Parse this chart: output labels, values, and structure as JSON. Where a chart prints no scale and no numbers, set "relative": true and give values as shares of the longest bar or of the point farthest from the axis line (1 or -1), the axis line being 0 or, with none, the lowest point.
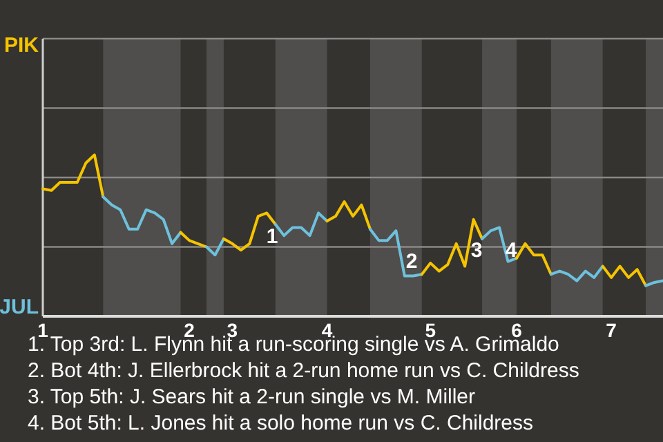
{
  "chart_data": {
    "type": "line",
    "relative": true,
    "categories": [
      "1",
      null,
      null,
      null,
      null,
      null,
      null,
      null,
      null,
      null,
      null,
      null,
      null,
      null,
      null,
      null,
      null,
      "2",
      null,
      null,
      null,
      null,
      "3",
      null,
      null,
      null,
      null,
      null,
      null,
      null,
      null,
      null,
      null,
      "4",
      null,
      null,
      null,
      null,
      null,
      null,
      null,
      null,
      null,
      null,
      null,
      "5",
      null,
      null,
      null,
      null,
      null,
      null,
      null,
      null,
      null,
      "6",
      null,
      null,
      null,
      null,
      null,
      null,
      null,
      null,
      null,
      null,
      "7",
      null,
      null,
      null,
      null,
      null,
      null
    ],
    "ref_lines": [
      {
        "axis": "y",
        "value": 0.43,
        "color": "#8a8986"
      },
      {
        "axis": "y",
        "value": 0.86,
        "color": "#8a8986"
      },
      {
        "axis": "y",
        "value": 1.29,
        "color": "#8a8986"
      }
    ],
    "marker": "none",
    "line_style": "solid",
    "series": [
      {
        "name": "PIK",
        "color": "#f5c400",
        "values": [
          0.79,
          0.78,
          0.83,
          0.83,
          0.83,
          0.95,
          1,
          0.74,
          null,
          null,
          null,
          null,
          null,
          null,
          null,
          null,
          null,
          null,
          null,
          null,
          null,
          null,
          null,
          null,
          null,
          null,
          null,
          null,
          null,
          null,
          null,
          null,
          null,
          null,
          null,
          null,
          null,
          null,
          null,
          null,
          null,
          null,
          null,
          null,
          null,
          null,
          null,
          null,
          null,
          null,
          null,
          null,
          null,
          null,
          null,
          null,
          null,
          null,
          null,
          null,
          null,
          null,
          null,
          null,
          null,
          null,
          null,
          null,
          null,
          null,
          null,
          null,
          null
        ]
      },
      {
        "name": "JUL",
        "color": "#6ec1dd",
        "values": [
          null,
          null,
          null,
          null,
          null,
          null,
          null,
          0.74,
          0.69,
          0.66,
          0.54,
          0.54,
          0.66,
          0.64,
          0.6,
          0.45,
          0.52,
          null,
          null,
          null,
          null,
          null,
          null,
          null,
          null,
          null,
          null,
          null,
          null,
          null,
          null,
          null,
          null,
          null,
          null,
          null,
          null,
          null,
          null,
          null,
          null,
          null,
          null,
          null,
          null,
          null,
          null,
          null,
          null,
          null,
          null,
          null,
          null,
          null,
          null,
          null,
          null,
          null,
          null,
          null,
          null,
          null,
          null,
          null,
          null,
          null,
          null,
          null,
          null,
          null,
          null,
          null,
          null
        ]
      },
      {
        "color": "#f5c400",
        "values": [
          null,
          null,
          null,
          null,
          null,
          null,
          null,
          null,
          null,
          null,
          null,
          null,
          null,
          null,
          null,
          null,
          0.52,
          0.47,
          0.45,
          0.43,
          null,
          null,
          null,
          null,
          null,
          null,
          null,
          null,
          null,
          null,
          null,
          null,
          null,
          null,
          null,
          null,
          null,
          null,
          null,
          null,
          null,
          null,
          null,
          null,
          null,
          null,
          null,
          null,
          null,
          null,
          null,
          null,
          null,
          null,
          null,
          null,
          null,
          null,
          null,
          null,
          null,
          null,
          null,
          null,
          null,
          null,
          null,
          null,
          null,
          null,
          null,
          null,
          null
        ]
      },
      {
        "color": "#6ec1dd",
        "values": [
          null,
          null,
          null,
          null,
          null,
          null,
          null,
          null,
          null,
          null,
          null,
          null,
          null,
          null,
          null,
          null,
          null,
          null,
          null,
          0.43,
          0.38,
          0.48,
          null,
          null,
          null,
          null,
          null,
          null,
          null,
          null,
          null,
          null,
          null,
          null,
          null,
          null,
          null,
          null,
          null,
          null,
          null,
          null,
          null,
          null,
          null,
          null,
          null,
          null,
          null,
          null,
          null,
          null,
          null,
          null,
          null,
          null,
          null,
          null,
          null,
          null,
          null,
          null,
          null,
          null,
          null,
          null,
          null,
          null,
          null,
          null,
          null,
          null,
          null
        ]
      },
      {
        "color": "#f5c400",
        "values": [
          null,
          null,
          null,
          null,
          null,
          null,
          null,
          null,
          null,
          null,
          null,
          null,
          null,
          null,
          null,
          null,
          null,
          null,
          null,
          null,
          null,
          0.48,
          0.45,
          0.41,
          0.45,
          0.62,
          0.64,
          0.57,
          null,
          null,
          null,
          null,
          null,
          null,
          null,
          null,
          null,
          null,
          null,
          null,
          null,
          null,
          null,
          null,
          null,
          null,
          null,
          null,
          null,
          null,
          null,
          null,
          null,
          null,
          null,
          null,
          null,
          null,
          null,
          null,
          null,
          null,
          null,
          null,
          null,
          null,
          null,
          null,
          null,
          null,
          null,
          null,
          null
        ]
      },
      {
        "color": "#6ec1dd",
        "values": [
          null,
          null,
          null,
          null,
          null,
          null,
          null,
          null,
          null,
          null,
          null,
          null,
          null,
          null,
          null,
          null,
          null,
          null,
          null,
          null,
          null,
          null,
          null,
          null,
          null,
          null,
          null,
          0.57,
          0.5,
          0.55,
          0.55,
          0.5,
          0.64,
          0.59,
          null,
          null,
          null,
          null,
          null,
          null,
          null,
          null,
          null,
          null,
          null,
          null,
          null,
          null,
          null,
          null,
          null,
          null,
          null,
          null,
          null,
          null,
          null,
          null,
          null,
          null,
          null,
          null,
          null,
          null,
          null,
          null,
          null,
          null,
          null,
          null,
          null,
          null,
          null
        ]
      },
      {
        "color": "#f5c400",
        "values": [
          null,
          null,
          null,
          null,
          null,
          null,
          null,
          null,
          null,
          null,
          null,
          null,
          null,
          null,
          null,
          null,
          null,
          null,
          null,
          null,
          null,
          null,
          null,
          null,
          null,
          null,
          null,
          null,
          null,
          null,
          null,
          null,
          null,
          0.59,
          0.62,
          0.71,
          0.62,
          0.69,
          0.54,
          null,
          null,
          null,
          null,
          null,
          null,
          null,
          null,
          null,
          null,
          null,
          null,
          null,
          null,
          null,
          null,
          null,
          null,
          null,
          null,
          null,
          null,
          null,
          null,
          null,
          null,
          null,
          null,
          null,
          null,
          null,
          null,
          null,
          null
        ]
      },
      {
        "color": "#6ec1dd",
        "values": [
          null,
          null,
          null,
          null,
          null,
          null,
          null,
          null,
          null,
          null,
          null,
          null,
          null,
          null,
          null,
          null,
          null,
          null,
          null,
          null,
          null,
          null,
          null,
          null,
          null,
          null,
          null,
          null,
          null,
          null,
          null,
          null,
          null,
          null,
          null,
          null,
          null,
          null,
          0.54,
          0.47,
          0.47,
          0.53,
          0.25,
          0.25,
          0.26,
          null,
          null,
          null,
          null,
          null,
          null,
          null,
          null,
          null,
          null,
          null,
          null,
          null,
          null,
          null,
          null,
          null,
          null,
          null,
          null,
          null,
          null,
          null,
          null,
          null,
          null,
          null,
          null
        ]
      },
      {
        "color": "#f5c400",
        "values": [
          null,
          null,
          null,
          null,
          null,
          null,
          null,
          null,
          null,
          null,
          null,
          null,
          null,
          null,
          null,
          null,
          null,
          null,
          null,
          null,
          null,
          null,
          null,
          null,
          null,
          null,
          null,
          null,
          null,
          null,
          null,
          null,
          null,
          null,
          null,
          null,
          null,
          null,
          null,
          null,
          null,
          null,
          null,
          null,
          0.26,
          0.33,
          0.28,
          0.32,
          0.45,
          0.31,
          0.6,
          0.48,
          null,
          null,
          null,
          null,
          null,
          null,
          null,
          null,
          null,
          null,
          null,
          null,
          null,
          null,
          null,
          null,
          null,
          null,
          null,
          null,
          null
        ]
      },
      {
        "color": "#6ec1dd",
        "values": [
          null,
          null,
          null,
          null,
          null,
          null,
          null,
          null,
          null,
          null,
          null,
          null,
          null,
          null,
          null,
          null,
          null,
          null,
          null,
          null,
          null,
          null,
          null,
          null,
          null,
          null,
          null,
          null,
          null,
          null,
          null,
          null,
          null,
          null,
          null,
          null,
          null,
          null,
          null,
          null,
          null,
          null,
          null,
          null,
          null,
          null,
          null,
          null,
          null,
          null,
          null,
          0.48,
          0.53,
          0.55,
          0.34,
          0.36,
          null,
          null,
          null,
          null,
          null,
          null,
          null,
          null,
          null,
          null,
          null,
          null,
          null,
          null,
          null,
          null,
          null
        ]
      },
      {
        "color": "#f5c400",
        "values": [
          null,
          null,
          null,
          null,
          null,
          null,
          null,
          null,
          null,
          null,
          null,
          null,
          null,
          null,
          null,
          null,
          null,
          null,
          null,
          null,
          null,
          null,
          null,
          null,
          null,
          null,
          null,
          null,
          null,
          null,
          null,
          null,
          null,
          null,
          null,
          null,
          null,
          null,
          null,
          null,
          null,
          null,
          null,
          null,
          null,
          null,
          null,
          null,
          null,
          null,
          null,
          null,
          null,
          null,
          null,
          0.36,
          0.45,
          0.38,
          0.38,
          0.26,
          null,
          null,
          null,
          null,
          null,
          null,
          null,
          null,
          null,
          null,
          null,
          null,
          null
        ]
      },
      {
        "color": "#6ec1dd",
        "values": [
          null,
          null,
          null,
          null,
          null,
          null,
          null,
          null,
          null,
          null,
          null,
          null,
          null,
          null,
          null,
          null,
          null,
          null,
          null,
          null,
          null,
          null,
          null,
          null,
          null,
          null,
          null,
          null,
          null,
          null,
          null,
          null,
          null,
          null,
          null,
          null,
          null,
          null,
          null,
          null,
          null,
          null,
          null,
          null,
          null,
          null,
          null,
          null,
          null,
          null,
          null,
          null,
          null,
          null,
          null,
          null,
          null,
          null,
          null,
          0.26,
          0.28,
          0.26,
          0.22,
          0.28,
          0.24,
          0.31,
          null,
          null,
          null,
          null,
          null,
          null,
          null
        ]
      },
      {
        "color": "#f5c400",
        "values": [
          null,
          null,
          null,
          null,
          null,
          null,
          null,
          null,
          null,
          null,
          null,
          null,
          null,
          null,
          null,
          null,
          null,
          null,
          null,
          null,
          null,
          null,
          null,
          null,
          null,
          null,
          null,
          null,
          null,
          null,
          null,
          null,
          null,
          null,
          null,
          null,
          null,
          null,
          null,
          null,
          null,
          null,
          null,
          null,
          null,
          null,
          null,
          null,
          null,
          null,
          null,
          null,
          null,
          null,
          null,
          null,
          null,
          null,
          null,
          null,
          null,
          null,
          null,
          null,
          null,
          0.31,
          0.24,
          0.31,
          0.24,
          0.29,
          0.19,
          null,
          null
        ]
      },
      {
        "color": "#6ec1dd",
        "values": [
          null,
          null,
          null,
          null,
          null,
          null,
          null,
          null,
          null,
          null,
          null,
          null,
          null,
          null,
          null,
          null,
          null,
          null,
          null,
          null,
          null,
          null,
          null,
          null,
          null,
          null,
          null,
          null,
          null,
          null,
          null,
          null,
          null,
          null,
          null,
          null,
          null,
          null,
          null,
          null,
          null,
          null,
          null,
          null,
          null,
          null,
          null,
          null,
          null,
          null,
          null,
          null,
          null,
          null,
          null,
          null,
          null,
          null,
          null,
          null,
          null,
          null,
          null,
          null,
          null,
          null,
          null,
          null,
          null,
          null,
          0.19,
          0.21,
          0.22
        ]
      }
    ],
    "annotations": [
      "1",
      "2",
      "3",
      "4",
      "1. Top 3rd: L. Flynn hit a run-scoring single vs A. Grimaldo",
      "2. Bot 4th: J. Ellerbrock hit a 2-run home run vs C. Childress",
      "3. Top 5th: J. Sears hit a 2-run single vs M. Miller",
      "4. Bot 5th: L. Jones hit a solo home run vs C. Childress"
    ]
  }
}
